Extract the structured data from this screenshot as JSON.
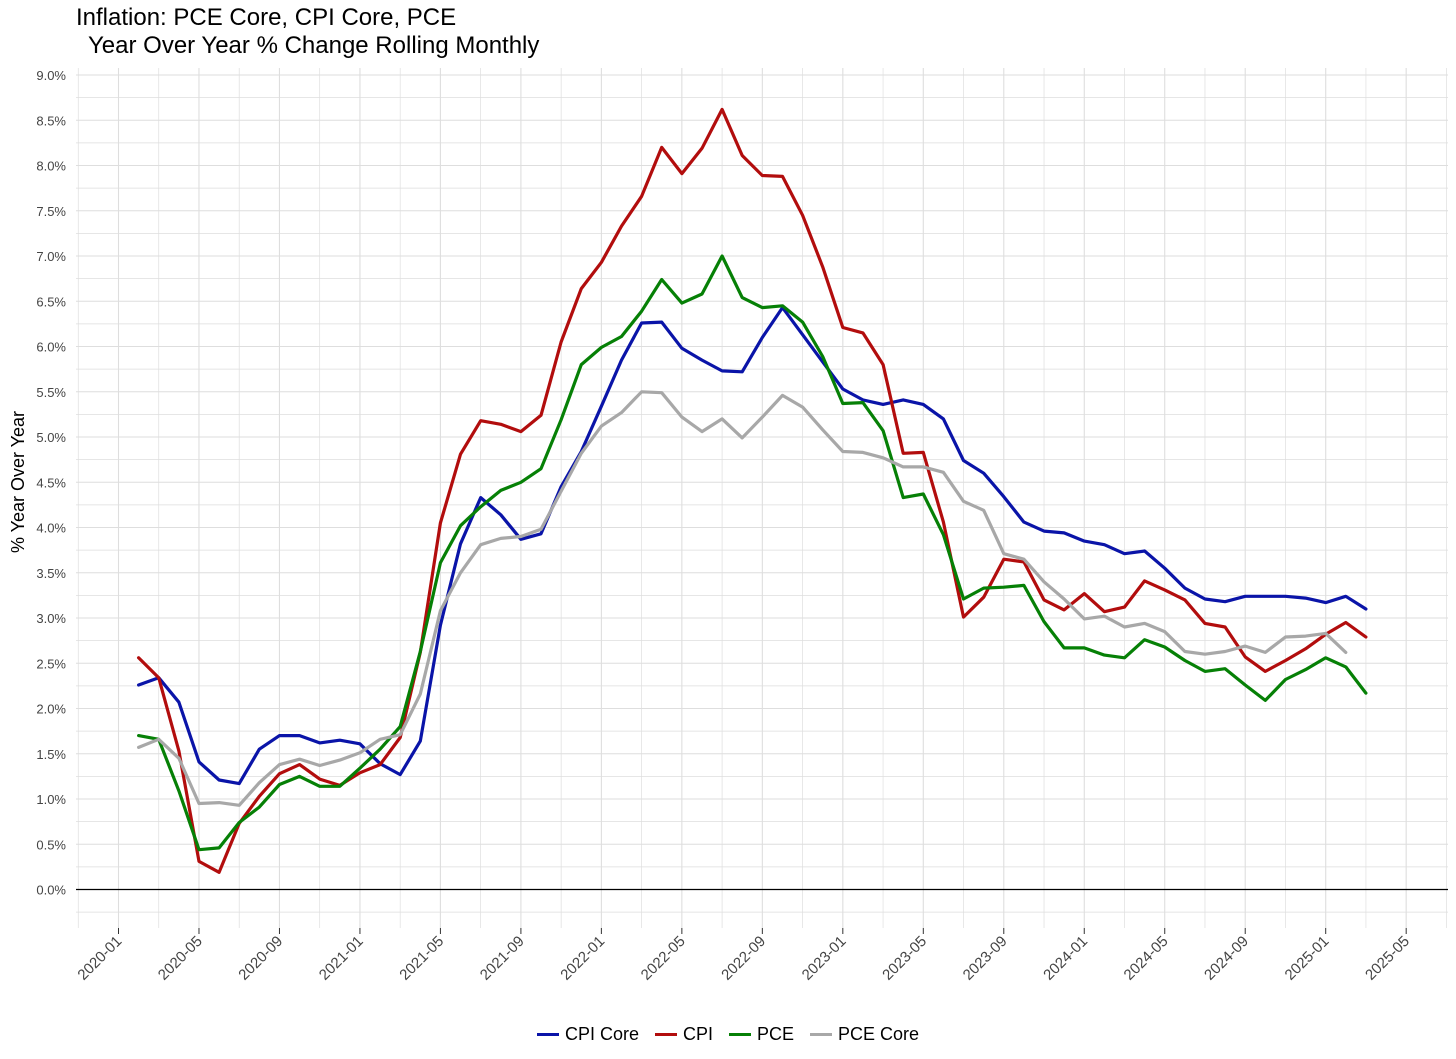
{
  "chart_data": {
    "type": "line",
    "title": "Inflation: PCE Core, CPI Core, PCE",
    "subtitle": "Year Over Year % Change Rolling Monthly",
    "xlabel": "",
    "ylabel": "% Year Over Year",
    "ylim": [
      -0.4,
      9.0
    ],
    "y_ticks": [
      "0.0%",
      "0.5%",
      "1.0%",
      "1.5%",
      "2.0%",
      "2.5%",
      "3.0%",
      "3.5%",
      "4.0%",
      "4.5%",
      "5.0%",
      "5.5%",
      "6.0%",
      "6.5%",
      "7.0%",
      "7.5%",
      "8.0%",
      "8.5%",
      "9.0%"
    ],
    "x_ticks": [
      "2020-01",
      "2020-05",
      "2020-09",
      "2021-01",
      "2021-05",
      "2021-09",
      "2022-01",
      "2022-05",
      "2022-09",
      "2023-01",
      "2023-05",
      "2023-09",
      "2024-01",
      "2024-05",
      "2024-09",
      "2025-01",
      "2025-05"
    ],
    "x_start": "2020-02",
    "grid": true,
    "zero_line": true,
    "legend_position": "bottom",
    "series": [
      {
        "name": "CPI Core",
        "color": "#0a14a8",
        "values": [
          2.26,
          2.34,
          2.07,
          1.41,
          1.21,
          1.17,
          1.55,
          1.7,
          1.7,
          1.62,
          1.65,
          1.61,
          1.39,
          1.27,
          1.64,
          2.92,
          3.82,
          4.33,
          4.14,
          3.87,
          3.93,
          4.45,
          4.84,
          5.34,
          5.85,
          6.26,
          6.27,
          5.98,
          5.85,
          5.73,
          5.72,
          6.1,
          6.43,
          6.13,
          5.83,
          5.53,
          5.41,
          5.36,
          5.41,
          5.36,
          5.2,
          4.74,
          4.6,
          4.34,
          4.06,
          3.96,
          3.94,
          3.85,
          3.81,
          3.71,
          3.74,
          3.55,
          3.33,
          3.21,
          3.18,
          3.24,
          3.24,
          3.24,
          3.22,
          3.17,
          3.24,
          3.1
        ]
      },
      {
        "name": "CPI",
        "color": "#b20d0d",
        "values": [
          2.56,
          2.34,
          1.53,
          0.31,
          0.19,
          0.73,
          1.03,
          1.28,
          1.38,
          1.22,
          1.15,
          1.29,
          1.38,
          1.68,
          2.62,
          4.05,
          4.81,
          5.18,
          5.14,
          5.06,
          5.24,
          6.05,
          6.64,
          6.93,
          7.33,
          7.66,
          8.2,
          7.91,
          8.19,
          8.62,
          8.11,
          7.89,
          7.88,
          7.45,
          6.88,
          6.21,
          6.15,
          5.8,
          4.82,
          4.83,
          4.06,
          3.01,
          3.23,
          3.65,
          3.62,
          3.2,
          3.09,
          3.27,
          3.07,
          3.12,
          3.41,
          3.31,
          3.2,
          2.94,
          2.9,
          2.57,
          2.41,
          2.53,
          2.66,
          2.82,
          2.95,
          2.79
        ]
      },
      {
        "name": "PCE",
        "color": "#068006",
        "values": [
          1.7,
          1.66,
          1.09,
          0.44,
          0.46,
          0.74,
          0.91,
          1.16,
          1.25,
          1.14,
          1.14,
          1.34,
          1.55,
          1.8,
          2.63,
          3.61,
          4.02,
          4.23,
          4.41,
          4.5,
          4.65,
          5.19,
          5.8,
          5.99,
          6.11,
          6.39,
          6.74,
          6.48,
          6.58,
          7.0,
          6.54,
          6.43,
          6.45,
          6.27,
          5.89,
          5.37,
          5.38,
          5.07,
          4.33,
          4.37,
          3.92,
          3.21,
          3.33,
          3.34,
          3.36,
          2.96,
          2.67,
          2.67,
          2.59,
          2.56,
          2.76,
          2.68,
          2.53,
          2.41,
          2.44,
          2.26,
          2.09,
          2.32,
          2.43,
          2.56,
          2.46,
          2.17
        ]
      },
      {
        "name": "PCE Core",
        "color": "#a8a8a8",
        "values": [
          1.57,
          1.66,
          1.45,
          0.95,
          0.96,
          0.93,
          1.18,
          1.38,
          1.44,
          1.37,
          1.43,
          1.51,
          1.66,
          1.71,
          2.16,
          3.08,
          3.5,
          3.81,
          3.88,
          3.9,
          3.98,
          4.4,
          4.82,
          5.12,
          5.27,
          5.5,
          5.49,
          5.22,
          5.06,
          5.2,
          4.99,
          5.22,
          5.46,
          5.33,
          5.08,
          4.84,
          4.83,
          4.77,
          4.67,
          4.67,
          4.61,
          4.29,
          4.19,
          3.71,
          3.65,
          3.4,
          3.21,
          2.99,
          3.02,
          2.9,
          2.94,
          2.85,
          2.63,
          2.6,
          2.63,
          2.69,
          2.62,
          2.79,
          2.8,
          2.83,
          2.62
        ]
      }
    ]
  }
}
